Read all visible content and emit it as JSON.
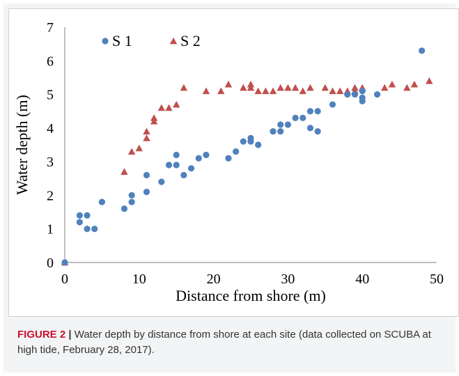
{
  "caption": {
    "label": "FIGURE 2",
    "separator": " | ",
    "text": "Water depth by distance from shore at each site (data collected on SCUBA at high tide, February 28, 2017)."
  },
  "chart_data": {
    "type": "scatter",
    "title": "",
    "xlabel": "Distance from shore (m)",
    "ylabel": "Water depth (m)",
    "xlim": [
      0,
      50
    ],
    "ylim": [
      0,
      7
    ],
    "xticks": [
      "0",
      "10",
      "20",
      "30",
      "40",
      "50"
    ],
    "yticks": [
      "0",
      "1",
      "2",
      "3",
      "4",
      "5",
      "6",
      "7"
    ],
    "grid": false,
    "legend_position": "top-left",
    "series": [
      {
        "name": "S 1",
        "marker": "circle",
        "color": "#4f81bd",
        "points": [
          [
            0,
            0
          ],
          [
            2,
            1.4
          ],
          [
            2,
            1.2
          ],
          [
            3,
            1.4
          ],
          [
            3,
            1.0
          ],
          [
            4,
            1.0
          ],
          [
            5,
            1.8
          ],
          [
            8,
            1.6
          ],
          [
            9,
            2.0
          ],
          [
            9,
            1.8
          ],
          [
            11,
            2.6
          ],
          [
            11,
            2.1
          ],
          [
            13,
            2.4
          ],
          [
            14,
            2.9
          ],
          [
            15,
            3.2
          ],
          [
            15,
            2.9
          ],
          [
            16,
            2.6
          ],
          [
            17,
            2.8
          ],
          [
            18,
            3.1
          ],
          [
            19,
            3.2
          ],
          [
            22,
            3.1
          ],
          [
            23,
            3.3
          ],
          [
            24,
            3.6
          ],
          [
            25,
            3.7
          ],
          [
            25,
            3.6
          ],
          [
            26,
            3.5
          ],
          [
            28,
            3.9
          ],
          [
            29,
            4.1
          ],
          [
            29,
            3.9
          ],
          [
            30,
            4.1
          ],
          [
            31,
            4.3
          ],
          [
            32,
            4.3
          ],
          [
            33,
            4.5
          ],
          [
            33,
            4.0
          ],
          [
            34,
            4.5
          ],
          [
            34,
            3.9
          ],
          [
            36,
            4.7
          ],
          [
            38,
            5.0
          ],
          [
            39,
            5.0
          ],
          [
            40,
            5.1
          ],
          [
            40,
            4.9
          ],
          [
            40,
            4.8
          ],
          [
            42,
            5.0
          ],
          [
            48,
            6.3
          ]
        ]
      },
      {
        "name": "S 2",
        "marker": "triangle",
        "color": "#c0504d",
        "points": [
          [
            0,
            0
          ],
          [
            8,
            2.7
          ],
          [
            9,
            3.3
          ],
          [
            10,
            3.4
          ],
          [
            11,
            3.9
          ],
          [
            11,
            3.7
          ],
          [
            12,
            4.3
          ],
          [
            12,
            4.2
          ],
          [
            13,
            4.6
          ],
          [
            14,
            4.6
          ],
          [
            15,
            4.7
          ],
          [
            16,
            5.2
          ],
          [
            19,
            5.1
          ],
          [
            21,
            5.1
          ],
          [
            22,
            5.3
          ],
          [
            24,
            5.2
          ],
          [
            25,
            5.3
          ],
          [
            25,
            5.2
          ],
          [
            26,
            5.1
          ],
          [
            27,
            5.1
          ],
          [
            28,
            5.1
          ],
          [
            29,
            5.2
          ],
          [
            30,
            5.2
          ],
          [
            31,
            5.2
          ],
          [
            32,
            5.1
          ],
          [
            33,
            5.2
          ],
          [
            35,
            5.2
          ],
          [
            36,
            5.1
          ],
          [
            37,
            5.1
          ],
          [
            38,
            5.1
          ],
          [
            39,
            5.2
          ],
          [
            39,
            5.1
          ],
          [
            40,
            5.2
          ],
          [
            43,
            5.2
          ],
          [
            44,
            5.3
          ],
          [
            46,
            5.2
          ],
          [
            47,
            5.3
          ],
          [
            49,
            5.4
          ]
        ]
      }
    ]
  }
}
